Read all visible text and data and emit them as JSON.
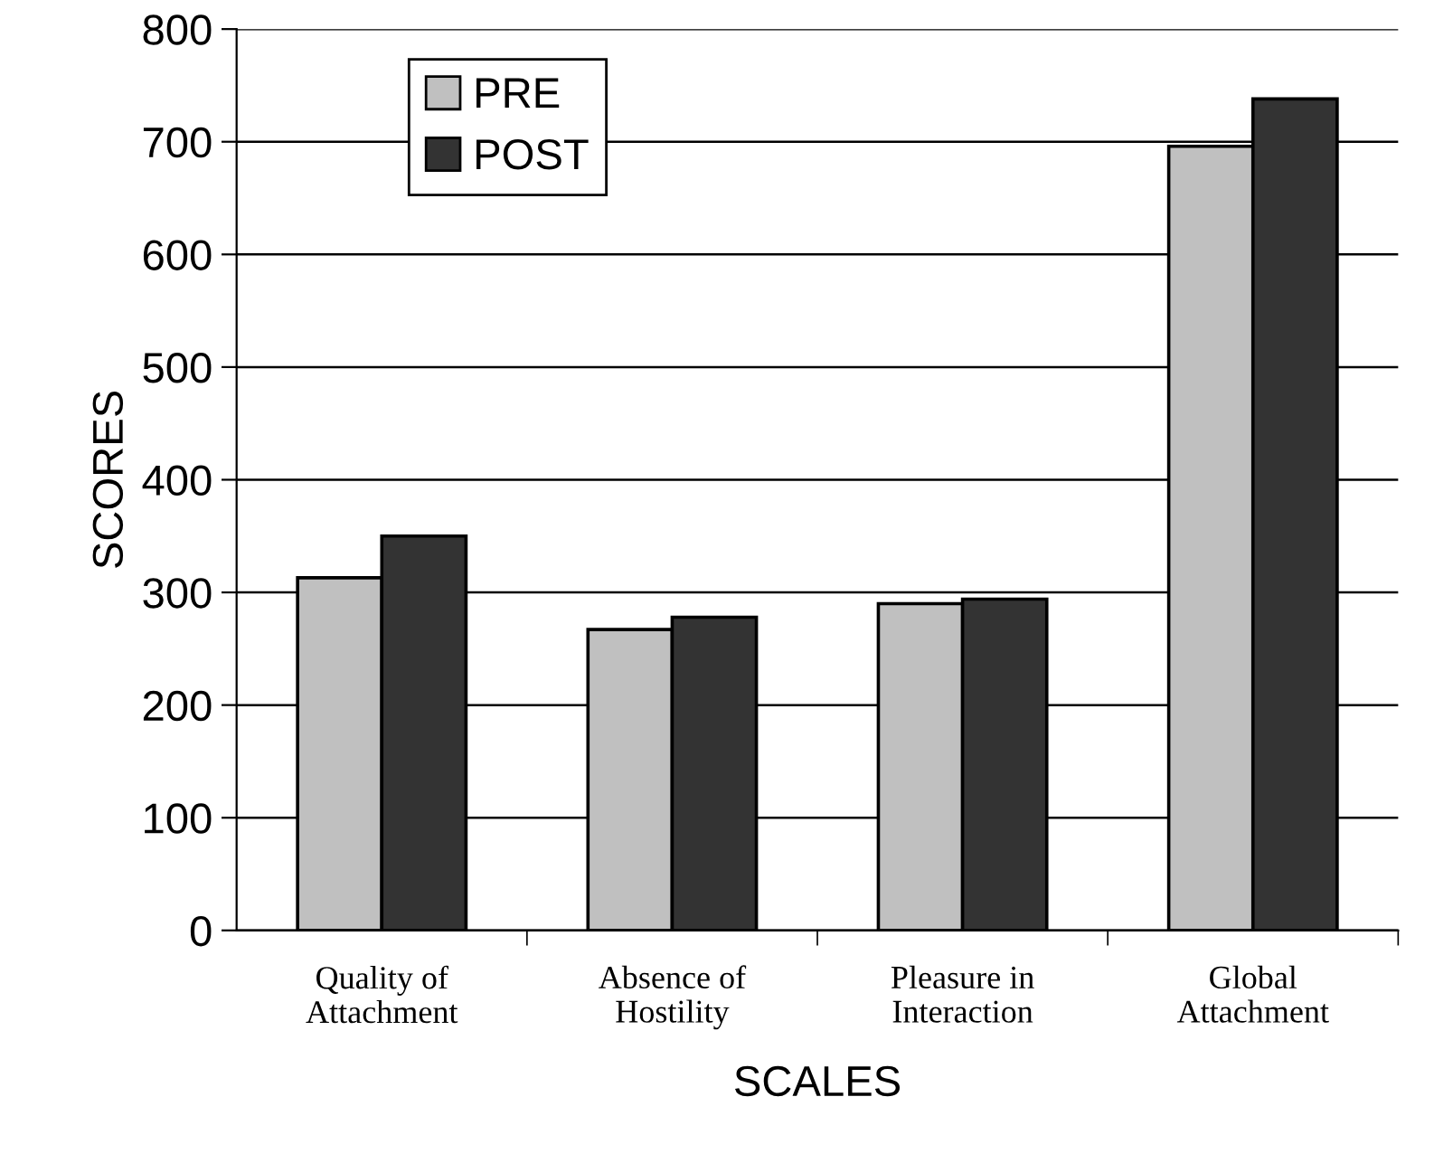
{
  "chart_data": {
    "type": "bar",
    "xlabel": "SCALES",
    "ylabel": "SCORES",
    "categories": [
      "Quality of\nAttachment",
      "Absence of\nHostility",
      "Pleasure in\nInteraction",
      "Global\nAttachment"
    ],
    "series": [
      {
        "name": "PRE",
        "color": "#c0c0c0",
        "values": [
          313,
          267,
          290,
          696
        ]
      },
      {
        "name": "POST",
        "color": "#333333",
        "values": [
          350,
          278,
          294,
          738
        ]
      }
    ],
    "ylim": [
      0,
      800
    ],
    "yticks": [
      0,
      100,
      200,
      300,
      400,
      500,
      600,
      700,
      800
    ],
    "grid": "y",
    "legend": "top left"
  }
}
